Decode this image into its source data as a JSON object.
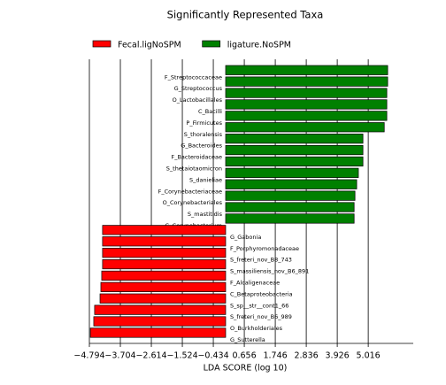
{
  "chart_data": {
    "type": "bar",
    "orientation": "horizontal",
    "title": "Significantly Represented Taxa",
    "x_label": "LDA SCORE (log 10)",
    "categories": [
      "F_Streptococcaceae",
      "G_Streptococcus",
      "O_Lactobacillales",
      "C_Bacilli",
      "P_Firmicutes",
      "S_thoralensis",
      "G_Bacteroides",
      "F_Bacteroidaceae",
      "S_thetaiotaomicron",
      "S_danieliae",
      "F_Corynebacteriaceae",
      "O_Corynebacteriales",
      "S_mastitidis",
      "G_Corynebacterium",
      "G_Gabonia",
      "F_Porphyromonadaceae",
      "S_freteri_nov_B8_743",
      "S_massiliensis_nov_B6_891",
      "F_Alcaligenaceae",
      "C_Betaproteobacteria",
      "S_sp__str__cont1_66",
      "S_freteri_nov_B6_989",
      "O_Burkholderiales",
      "G_Sutterella"
    ],
    "series": [
      {
        "name": "Fecal.ligNoSPM",
        "color": "#ff0000",
        "values": [
          null,
          null,
          null,
          null,
          null,
          null,
          null,
          null,
          null,
          null,
          null,
          null,
          null,
          null,
          -4.33,
          -4.33,
          -4.33,
          -4.33,
          -4.36,
          -4.39,
          -4.42,
          -4.61,
          -4.64,
          -4.76
        ]
      },
      {
        "name": "ligature.NoSPM",
        "color": "#008000",
        "values": [
          5.7,
          5.7,
          5.67,
          5.67,
          5.67,
          5.58,
          4.83,
          4.83,
          4.83,
          4.67,
          4.61,
          4.55,
          4.52,
          4.52,
          null,
          null,
          null,
          null,
          null,
          null,
          null,
          null,
          null,
          null
        ]
      }
    ],
    "xlim": [
      -4.794,
      6.6
    ],
    "xticks": [
      {
        "value": -4.794,
        "label": "−4.794"
      },
      {
        "value": -3.704,
        "label": "−3.704"
      },
      {
        "value": -2.614,
        "label": "−2.614"
      },
      {
        "value": -1.524,
        "label": "−1.524"
      },
      {
        "value": -0.434,
        "label": "−0.434"
      },
      0.656,
      1.746,
      2.836,
      3.926,
      5.016
    ],
    "grid": true,
    "legend_position": "upper center"
  }
}
